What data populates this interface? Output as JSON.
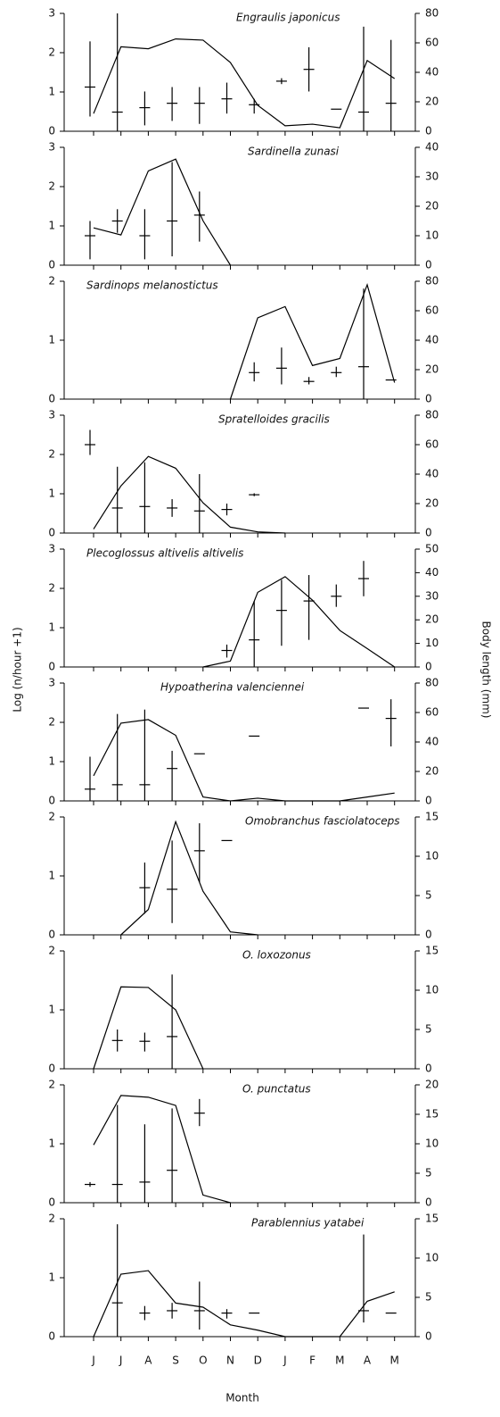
{
  "axis_labels": {
    "y": "Log (n/hour +1)",
    "y2": "Body length (mm)",
    "x": "Month"
  },
  "chart_data": [
    {
      "type": "line-errorbar",
      "title": "Engraulis japonicus",
      "ylim": [
        0,
        3
      ],
      "yticks": [
        0,
        1,
        2,
        3
      ],
      "y2lim": [
        0,
        80
      ],
      "y2ticks": [
        0,
        20,
        40,
        60,
        80
      ],
      "series": [
        {
          "color": "#000",
          "values": [
            0.45,
            2.15,
            2.1,
            2.35,
            2.32,
            1.75,
            0.66,
            0.14,
            0.18,
            0.09,
            1.8,
            1.34
          ]
        },
        {
          "axis": "y2",
          "color": "#000",
          "values": [
            30,
            13,
            16,
            19,
            19,
            22,
            18,
            34,
            42,
            15,
            13,
            19
          ],
          "low": [
            10,
            0,
            4,
            7,
            5,
            12,
            12,
            32,
            27,
            null,
            0,
            0
          ],
          "high": [
            61,
            80,
            27,
            30,
            30,
            33,
            22,
            36,
            57,
            null,
            71,
            62
          ]
        }
      ]
    },
    {
      "type": "line-errorbar",
      "title": "Sardinella zunasi",
      "ylim": [
        0,
        3
      ],
      "yticks": [
        0,
        1,
        2,
        3
      ],
      "y2lim": [
        0,
        40
      ],
      "y2ticks": [
        0,
        10,
        20,
        30,
        40
      ],
      "series": [
        {
          "color": "#000",
          "values": [
            0.95,
            0.77,
            2.4,
            2.7,
            1.13,
            0,
            null,
            null,
            null,
            null,
            null,
            null
          ]
        },
        {
          "axis": "y2",
          "color": "#000",
          "values": [
            10,
            15,
            10,
            15,
            17,
            null,
            null,
            null,
            null,
            null,
            null,
            null
          ],
          "low": [
            2,
            11,
            2,
            3,
            8,
            null,
            null,
            null,
            null,
            null,
            null,
            null
          ],
          "high": [
            15,
            19,
            19,
            35,
            25,
            null,
            null,
            null,
            null,
            null,
            null,
            null
          ]
        }
      ]
    },
    {
      "type": "line-errorbar",
      "title": "Sardinops melanostictus",
      "ylim": [
        0,
        2
      ],
      "yticks": [
        0,
        1,
        2
      ],
      "y2lim": [
        0,
        80
      ],
      "y2ticks": [
        0,
        20,
        40,
        60,
        80
      ],
      "series": [
        {
          "color": "#000",
          "values": [
            null,
            null,
            null,
            null,
            null,
            0,
            1.38,
            1.57,
            0.57,
            0.69,
            1.94,
            0.28
          ]
        },
        {
          "axis": "y2",
          "color": "#000",
          "values": [
            null,
            null,
            null,
            null,
            null,
            null,
            18,
            21,
            12,
            18,
            22,
            13
          ],
          "low": [
            null,
            null,
            null,
            null,
            null,
            null,
            12,
            10,
            10,
            15,
            0,
            null
          ],
          "high": [
            null,
            null,
            null,
            null,
            null,
            null,
            25,
            35,
            15,
            22,
            75,
            null
          ]
        }
      ]
    },
    {
      "type": "line-errorbar",
      "title": "Spratelloides gracilis",
      "ylim": [
        0,
        3
      ],
      "yticks": [
        0,
        1,
        2,
        3
      ],
      "y2lim": [
        0,
        80
      ],
      "y2ticks": [
        0,
        20,
        40,
        60,
        80
      ],
      "series": [
        {
          "color": "#000",
          "values": [
            0.1,
            1.2,
            1.95,
            1.65,
            0.77,
            0.15,
            0.03,
            0,
            null,
            null,
            null,
            null
          ]
        },
        {
          "axis": "y2",
          "color": "#000",
          "values": [
            60,
            17,
            18,
            17,
            15,
            16,
            26,
            null,
            null,
            null,
            null,
            null
          ],
          "low": [
            53,
            0,
            0,
            11,
            0,
            12,
            25,
            null,
            null,
            null,
            null,
            null
          ],
          "high": [
            70,
            45,
            48,
            23,
            40,
            20,
            27,
            null,
            null,
            null,
            null,
            null
          ]
        }
      ]
    },
    {
      "type": "line-errorbar",
      "title": "Plecoglossus altivelis altivelis",
      "ylim": [
        0,
        3
      ],
      "yticks": [
        0,
        1,
        2,
        3
      ],
      "y2lim": [
        0,
        50
      ],
      "y2ticks": [
        0,
        10,
        20,
        30,
        40,
        50
      ],
      "series": [
        {
          "color": "#000",
          "values": [
            null,
            null,
            null,
            null,
            0,
            0.15,
            1.9,
            2.3,
            1.7,
            0.93,
            0.47,
            0
          ]
        },
        {
          "axis": "y2",
          "color": "#000",
          "values": [
            null,
            null,
            null,
            null,
            null,
            7,
            11.5,
            24,
            28,
            30,
            37.5,
            null
          ],
          "low": [
            null,
            null,
            null,
            null,
            null,
            4,
            0,
            9,
            11.5,
            25.5,
            30,
            null
          ],
          "high": [
            null,
            null,
            null,
            null,
            null,
            9.5,
            28,
            37,
            39,
            35,
            45,
            null
          ]
        }
      ]
    },
    {
      "type": "line-errorbar",
      "title": "Hypoatherina valenciennei",
      "ylim": [
        0,
        3
      ],
      "yticks": [
        0,
        1,
        2,
        3
      ],
      "y2lim": [
        0,
        80
      ],
      "y2ticks": [
        0,
        20,
        40,
        60,
        80
      ],
      "series": [
        {
          "color": "#000",
          "values": [
            0.64,
            1.98,
            2.07,
            1.67,
            0.1,
            0,
            0.07,
            0,
            0,
            0,
            0.1,
            0.2
          ]
        },
        {
          "axis": "y2",
          "color": "#000",
          "values": [
            8,
            11,
            11,
            22,
            32,
            null,
            44,
            null,
            null,
            null,
            63,
            56
          ],
          "low": [
            0,
            0,
            0,
            0,
            null,
            null,
            null,
            null,
            null,
            null,
            null,
            37
          ],
          "high": [
            30,
            59,
            62,
            34,
            null,
            null,
            null,
            null,
            null,
            null,
            null,
            69
          ]
        }
      ]
    },
    {
      "type": "line-errorbar",
      "title": "Omobranchus fasciolatoceps",
      "ylim": [
        0,
        2
      ],
      "yticks": [
        0,
        1,
        2
      ],
      "y2lim": [
        0,
        15
      ],
      "y2ticks": [
        0,
        5,
        10,
        15
      ],
      "series": [
        {
          "color": "#000",
          "values": [
            null,
            0,
            0.43,
            1.92,
            0.74,
            0.05,
            0,
            null,
            null,
            null,
            null,
            null
          ]
        },
        {
          "axis": "y2",
          "color": "#000",
          "values": [
            null,
            null,
            6,
            5.8,
            10.7,
            12,
            null,
            null,
            null,
            null,
            null,
            null
          ],
          "low": [
            null,
            null,
            2.7,
            1.5,
            6.7,
            null,
            null,
            null,
            null,
            null,
            null,
            null
          ],
          "high": [
            null,
            null,
            9.2,
            12,
            14.2,
            null,
            null,
            null,
            null,
            null,
            null,
            null
          ]
        }
      ]
    },
    {
      "type": "line-errorbar",
      "title": "O. loxozonus",
      "ylim": [
        0,
        2
      ],
      "yticks": [
        0,
        1,
        2
      ],
      "y2lim": [
        0,
        15
      ],
      "y2ticks": [
        0,
        5,
        10,
        15
      ],
      "series": [
        {
          "color": "#000",
          "values": [
            0,
            1.39,
            1.38,
            1.0,
            0,
            null,
            null,
            null,
            null,
            null,
            null,
            null
          ]
        },
        {
          "axis": "y2",
          "color": "#000",
          "values": [
            null,
            3.6,
            3.5,
            4.1,
            null,
            null,
            null,
            null,
            null,
            null,
            null,
            null
          ],
          "low": [
            null,
            2.2,
            2.2,
            0,
            null,
            null,
            null,
            null,
            null,
            null,
            null,
            null
          ],
          "high": [
            null,
            5,
            4.6,
            12,
            null,
            null,
            null,
            null,
            null,
            null,
            null,
            null
          ]
        }
      ]
    },
    {
      "type": "line-errorbar",
      "title": "O. punctatus",
      "ylim": [
        0,
        2
      ],
      "yticks": [
        0,
        1,
        2
      ],
      "y2lim": [
        0,
        20
      ],
      "y2ticks": [
        0,
        5,
        10,
        15,
        20
      ],
      "series": [
        {
          "color": "#000",
          "values": [
            0.98,
            1.82,
            1.79,
            1.65,
            0.13,
            0,
            null,
            null,
            null,
            null,
            null,
            null
          ]
        },
        {
          "axis": "y2",
          "color": "#000",
          "values": [
            3.1,
            3.1,
            3.5,
            5.5,
            15.2,
            null,
            null,
            null,
            null,
            null,
            null,
            null
          ],
          "low": [
            2.7,
            0,
            0,
            0,
            13,
            null,
            null,
            null,
            null,
            null,
            null,
            null
          ],
          "high": [
            3.5,
            16.6,
            13.3,
            16,
            17.6,
            null,
            null,
            null,
            null,
            null,
            null,
            null
          ]
        }
      ]
    },
    {
      "type": "line-errorbar",
      "title": "Parablennius yatabei",
      "categories": [
        "J",
        "J",
        "A",
        "S",
        "O",
        "N",
        "D",
        "J",
        "F",
        "M",
        "A",
        "M"
      ],
      "ylim": [
        0,
        2
      ],
      "yticks": [
        0,
        1,
        2
      ],
      "y2lim": [
        0,
        15
      ],
      "y2ticks": [
        0,
        5,
        10,
        15
      ],
      "series": [
        {
          "color": "#000",
          "values": [
            0,
            1.06,
            1.12,
            0.57,
            0.5,
            0.2,
            0.11,
            0,
            0,
            0,
            0.6,
            0.76
          ]
        },
        {
          "axis": "y2",
          "color": "#000",
          "values": [
            null,
            4.3,
            3.0,
            3.3,
            3.3,
            3.0,
            3.0,
            null,
            null,
            null,
            3.3,
            3.0
          ],
          "low": [
            null,
            0,
            2.1,
            2.3,
            0.9,
            2.3,
            null,
            null,
            null,
            null,
            1.8,
            null
          ],
          "high": [
            null,
            14.3,
            3.9,
            4.3,
            7,
            3.5,
            null,
            null,
            null,
            null,
            13,
            null
          ]
        }
      ]
    }
  ]
}
